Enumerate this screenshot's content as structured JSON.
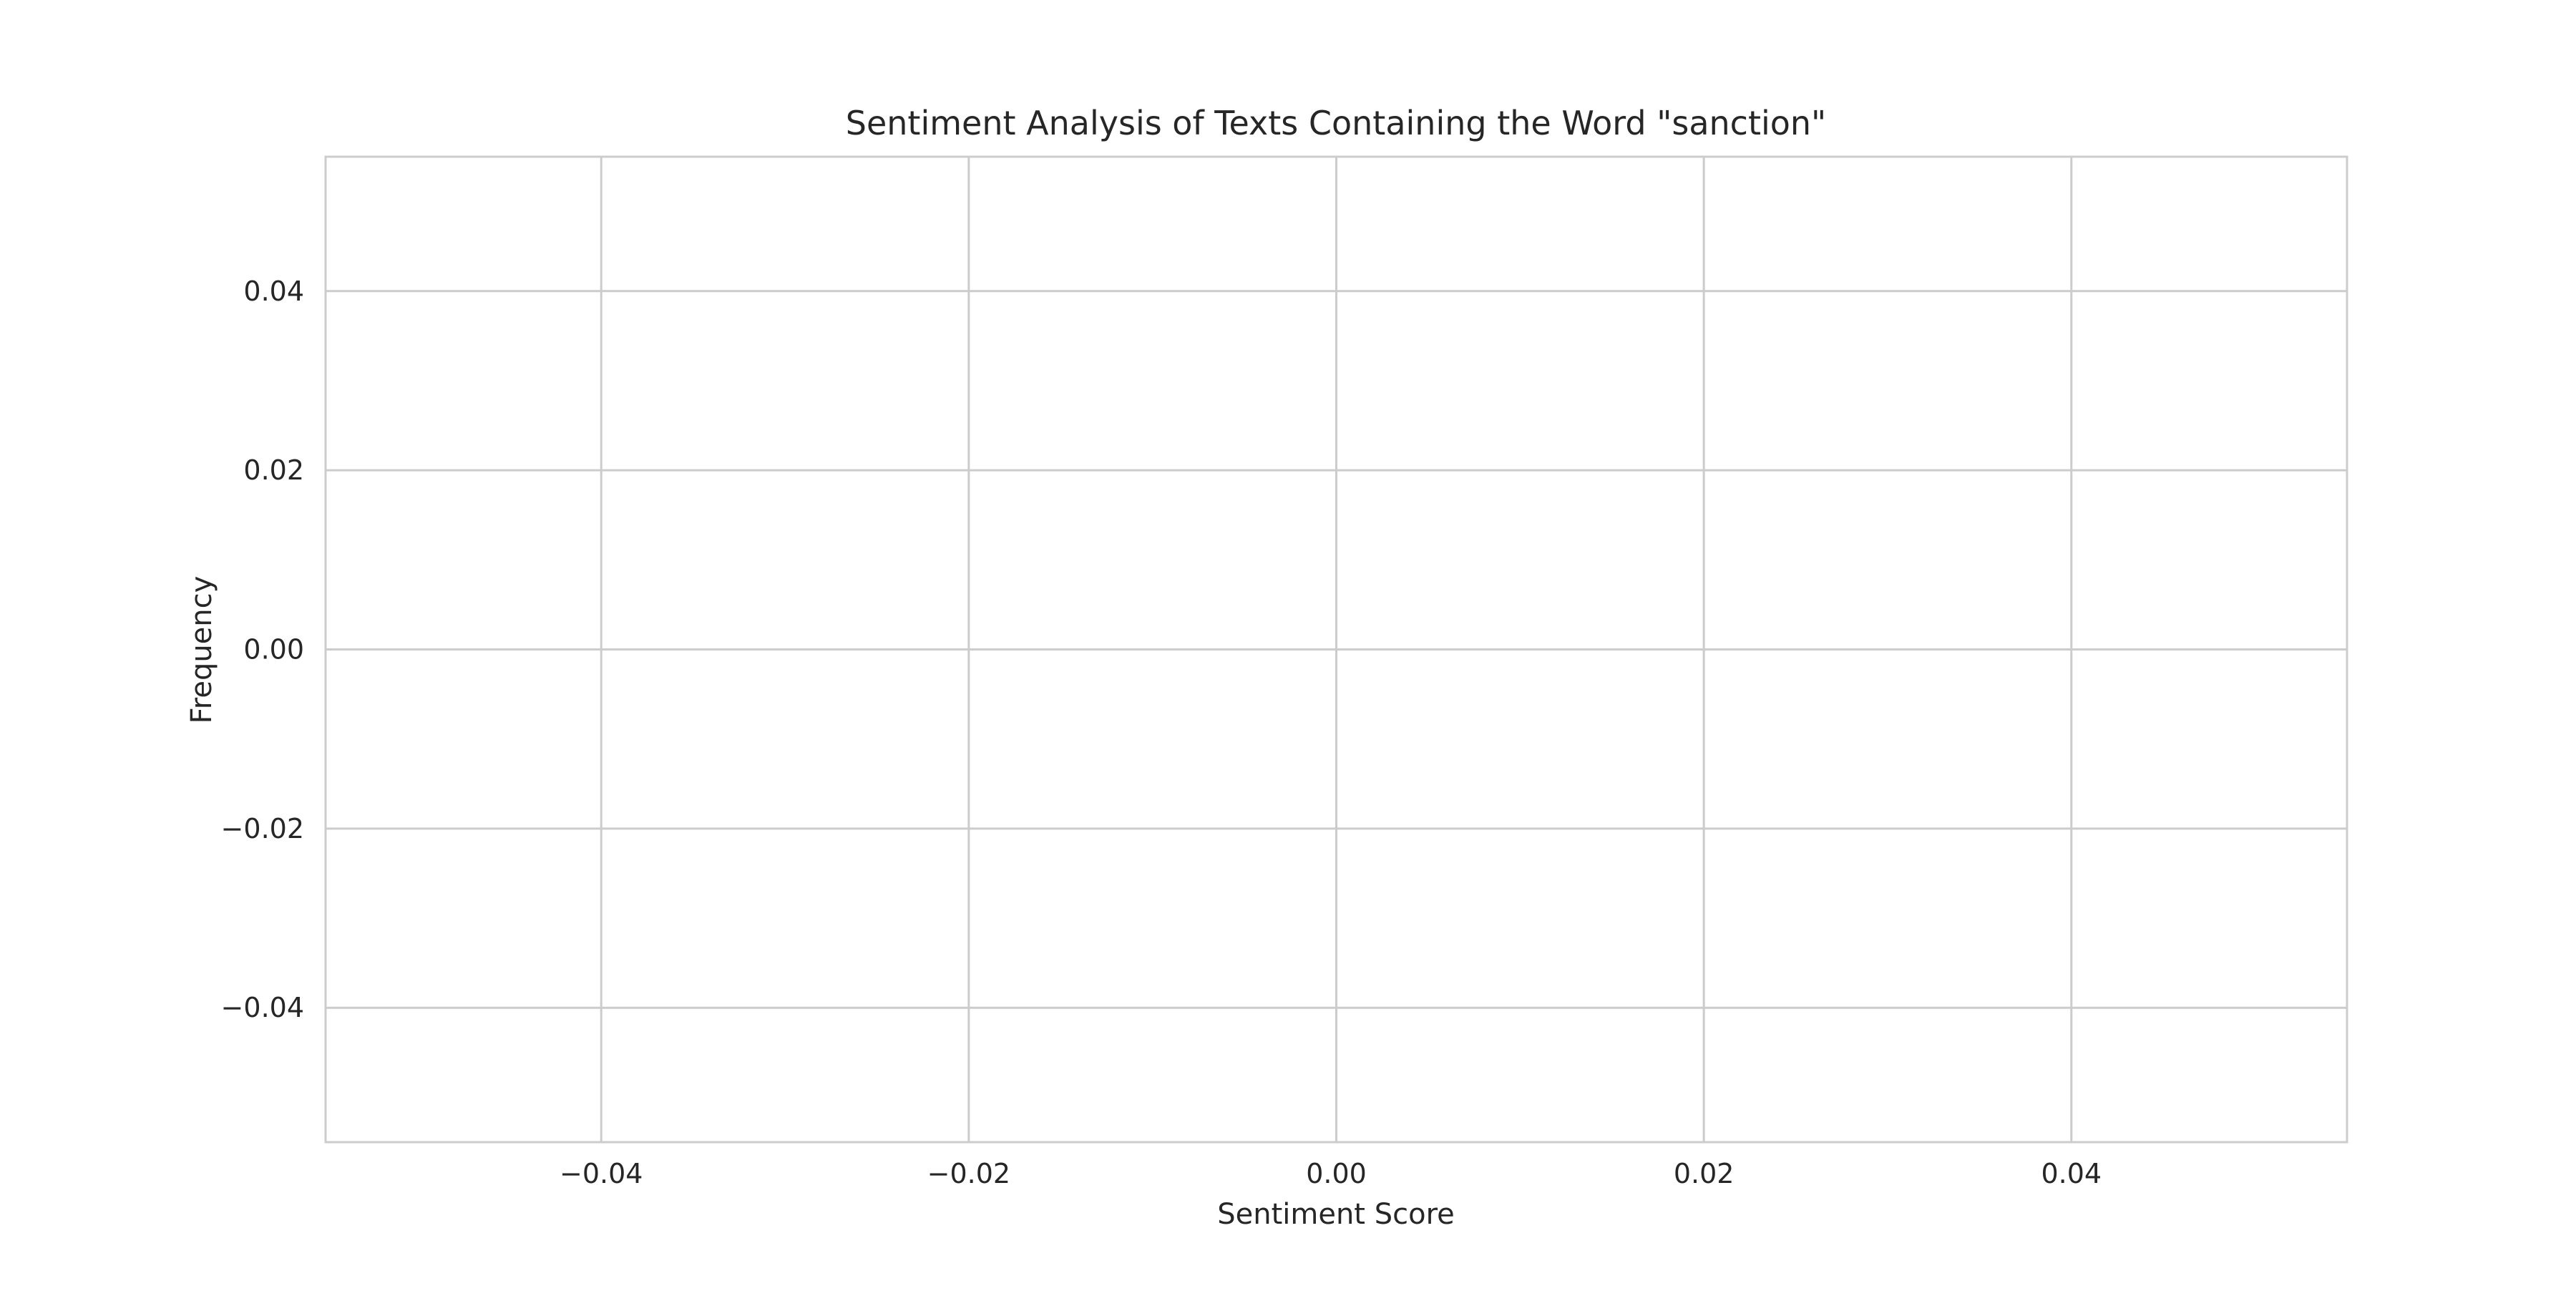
{
  "chart_data": {
    "type": "histogram",
    "title": "Sentiment Analysis of Texts Containing the Word \"sanction\"",
    "xlabel": "Sentiment Score",
    "ylabel": "Frequency",
    "x_ticks": [
      "−0.04",
      "−0.02",
      "0.00",
      "0.02",
      "0.04"
    ],
    "y_ticks": [
      "0.04",
      "0.02",
      "0.00",
      "−0.02",
      "−0.04"
    ],
    "xlim": [
      -0.055,
      0.055
    ],
    "ylim": [
      -0.055,
      0.055
    ],
    "values": [],
    "grid": true,
    "colors": {
      "grid": "#cccccc",
      "spine": "#cccccc",
      "text": "#262626",
      "background": "#ffffff"
    }
  }
}
